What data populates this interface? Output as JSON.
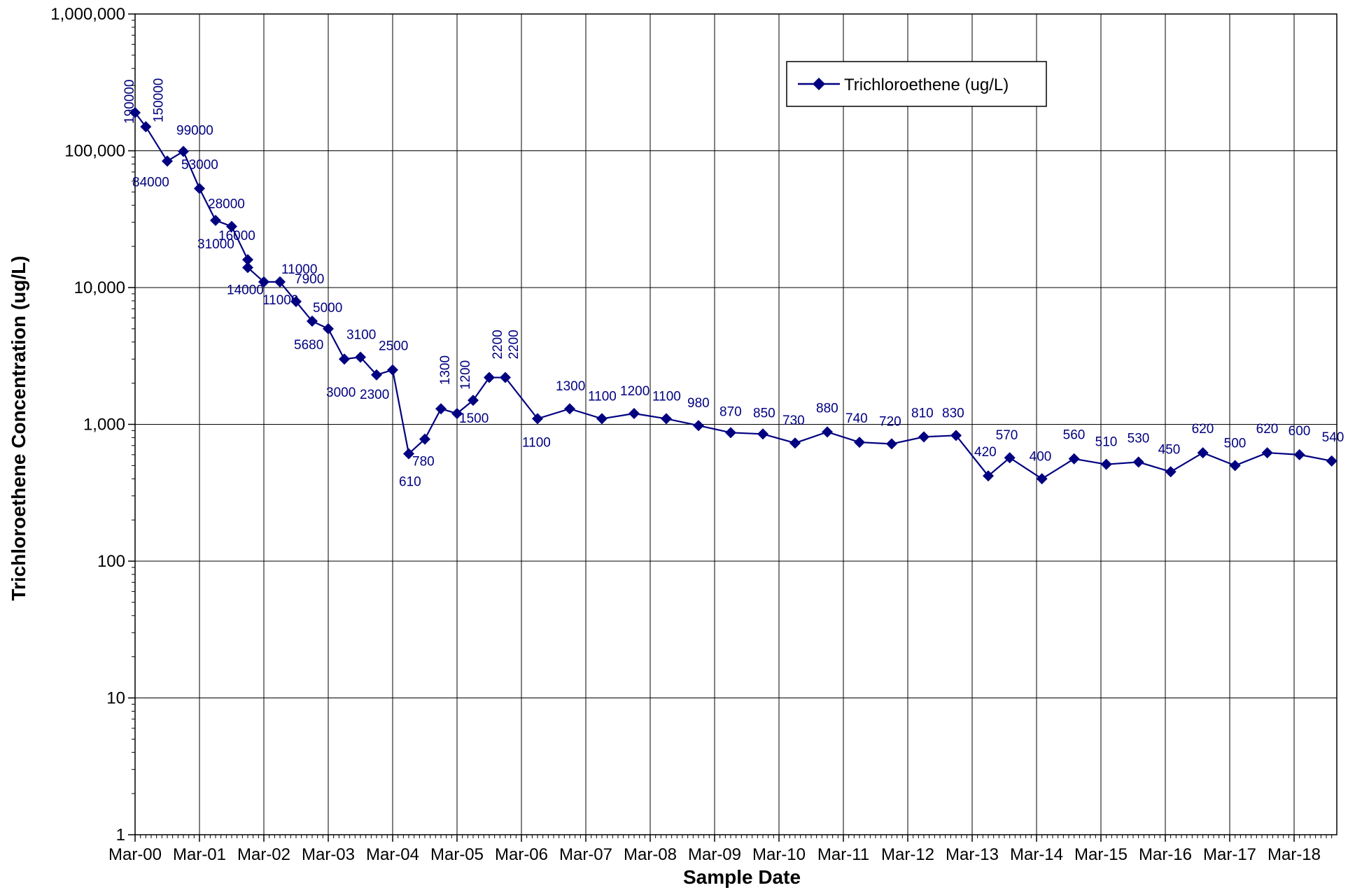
{
  "chart_data": {
    "type": "line",
    "xlabel": "Sample Date",
    "ylabel": "Trichloroethene Concentration (ug/L)",
    "y_scale": "log",
    "ylim": [
      1,
      1000000
    ],
    "y_ticks": [
      "1",
      "10",
      "100",
      "1,000",
      "10,000",
      "100,000",
      "1,000,000"
    ],
    "xlim": [
      "Mar-00",
      "Jan-19"
    ],
    "x_ticks": [
      "Mar-00",
      "Mar-01",
      "Mar-02",
      "Mar-03",
      "Mar-04",
      "Mar-05",
      "Mar-06",
      "Mar-07",
      "Mar-08",
      "Mar-09",
      "Mar-10",
      "Mar-11",
      "Mar-12",
      "Mar-13",
      "Mar-14",
      "Mar-15",
      "Mar-16",
      "Mar-17",
      "Mar-18"
    ],
    "grid": true,
    "legend": "top-right",
    "series_color": "#000080",
    "series": [
      {
        "name": "Trichloroethene (ug/L)",
        "points": [
          {
            "x": "2000-03",
            "y": 190000,
            "label": "190000"
          },
          {
            "x": "2000-05",
            "y": 150000,
            "label": "150000"
          },
          {
            "x": "2000-09",
            "y": 84000,
            "label": "84000"
          },
          {
            "x": "2000-12",
            "y": 99000,
            "label": "99000"
          },
          {
            "x": "2001-03",
            "y": 53000,
            "label": "53000"
          },
          {
            "x": "2001-06",
            "y": 31000,
            "label": "31000"
          },
          {
            "x": "2001-09",
            "y": 28000,
            "label": "28000"
          },
          {
            "x": "2001-12",
            "y": 16000,
            "label": "16000"
          },
          {
            "x": "2001-12",
            "y": 14000,
            "label": "14000"
          },
          {
            "x": "2002-03",
            "y": 11000,
            "label": "11000"
          },
          {
            "x": "2002-06",
            "y": 11000,
            "label": "11000"
          },
          {
            "x": "2002-09",
            "y": 7900,
            "label": "7900"
          },
          {
            "x": "2002-12",
            "y": 5680,
            "label": "5680"
          },
          {
            "x": "2003-03",
            "y": 5000,
            "label": "5000"
          },
          {
            "x": "2003-06",
            "y": 3000,
            "label": "3000"
          },
          {
            "x": "2003-09",
            "y": 3100,
            "label": "3100"
          },
          {
            "x": "2003-12",
            "y": 2300,
            "label": "2300"
          },
          {
            "x": "2004-03",
            "y": 2500,
            "label": "2500"
          },
          {
            "x": "2004-06",
            "y": 610,
            "label": "610"
          },
          {
            "x": "2004-09",
            "y": 780,
            "label": "780"
          },
          {
            "x": "2004-12",
            "y": 1300,
            "label": "1300"
          },
          {
            "x": "2005-03",
            "y": 1200,
            "label": "1200"
          },
          {
            "x": "2005-06",
            "y": 1500,
            "label": "1500"
          },
          {
            "x": "2005-09",
            "y": 2200,
            "label": "2200"
          },
          {
            "x": "2005-12",
            "y": 2200,
            "label": "2200"
          },
          {
            "x": "2006-06",
            "y": 1100,
            "label": "1100"
          },
          {
            "x": "2006-12",
            "y": 1300,
            "label": "1300"
          },
          {
            "x": "2007-06",
            "y": 1100,
            "label": "1100"
          },
          {
            "x": "2007-12",
            "y": 1200,
            "label": "1200"
          },
          {
            "x": "2008-06",
            "y": 1100,
            "label": "1100"
          },
          {
            "x": "2008-12",
            "y": 980,
            "label": "980"
          },
          {
            "x": "2009-06",
            "y": 870,
            "label": "870"
          },
          {
            "x": "2009-12",
            "y": 850,
            "label": "850"
          },
          {
            "x": "2010-06",
            "y": 730,
            "label": "730"
          },
          {
            "x": "2010-12",
            "y": 880,
            "label": "880"
          },
          {
            "x": "2011-06",
            "y": 740,
            "label": "740"
          },
          {
            "x": "2011-12",
            "y": 720,
            "label": "720"
          },
          {
            "x": "2012-06",
            "y": 810,
            "label": "810"
          },
          {
            "x": "2012-12",
            "y": 830,
            "label": "830"
          },
          {
            "x": "2013-06",
            "y": 420,
            "label": "420"
          },
          {
            "x": "2013-10",
            "y": 570,
            "label": "570"
          },
          {
            "x": "2014-04",
            "y": 400,
            "label": "400"
          },
          {
            "x": "2014-10",
            "y": 560,
            "label": "560"
          },
          {
            "x": "2015-04",
            "y": 510,
            "label": "510"
          },
          {
            "x": "2015-10",
            "y": 530,
            "label": "530"
          },
          {
            "x": "2016-04",
            "y": 450,
            "label": "450"
          },
          {
            "x": "2016-10",
            "y": 620,
            "label": "620"
          },
          {
            "x": "2017-04",
            "y": 500,
            "label": "500"
          },
          {
            "x": "2017-10",
            "y": 620,
            "label": "620"
          },
          {
            "x": "2018-04",
            "y": 600,
            "label": "600"
          },
          {
            "x": "2018-10",
            "y": 540,
            "label": "540"
          }
        ]
      }
    ]
  }
}
